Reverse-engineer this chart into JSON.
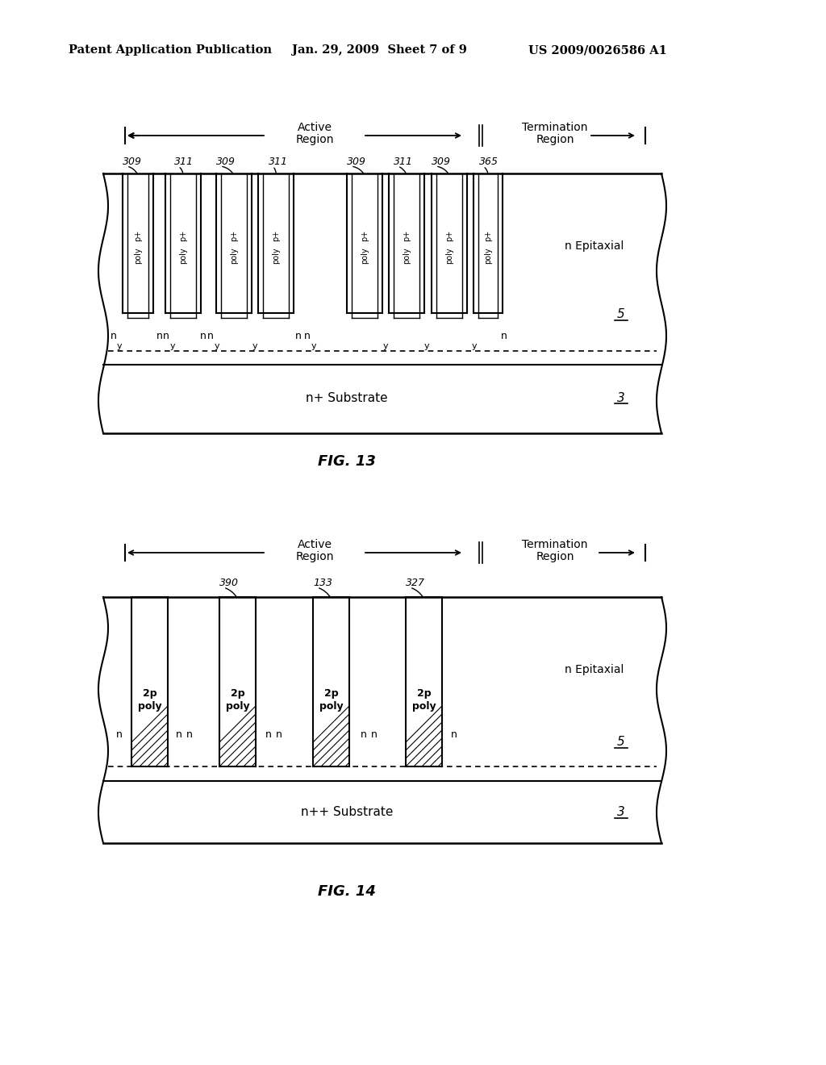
{
  "header_left": "Patent Application Publication",
  "header_mid": "Jan. 29, 2009  Sheet 7 of 9",
  "header_right": "US 2009/0026586 A1",
  "fig13_caption": "FIG. 13",
  "fig14_caption": "FIG. 14",
  "bg_color": "#ffffff"
}
